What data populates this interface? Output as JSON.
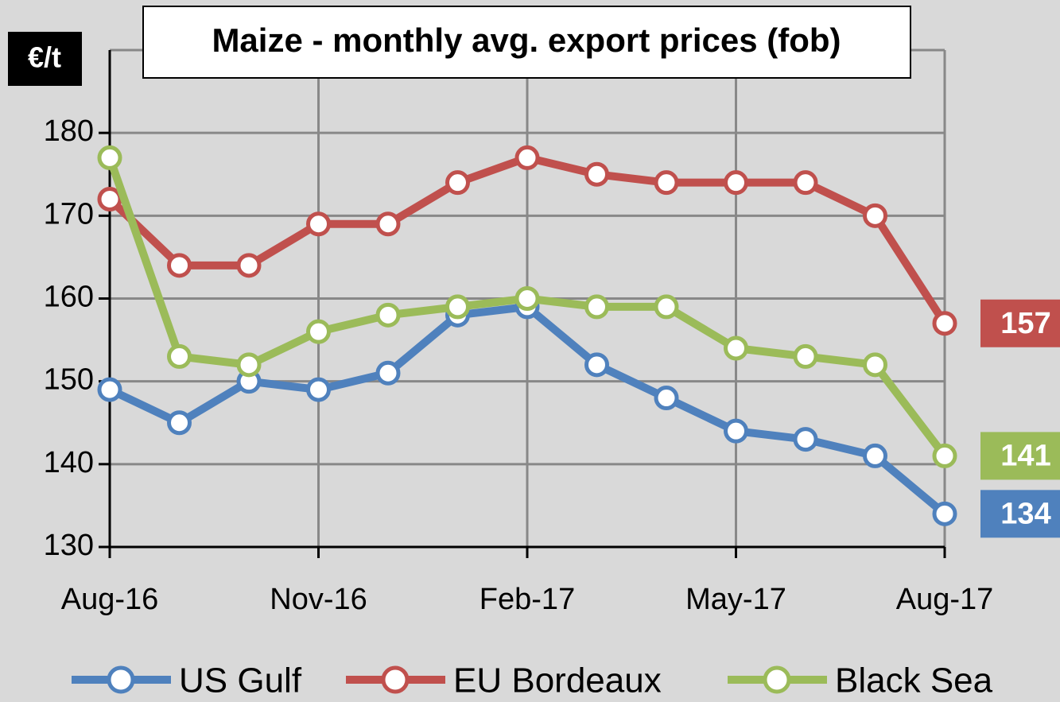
{
  "chart_data": {
    "type": "line",
    "title": "Maize - monthly avg. export prices (fob)",
    "y_label": "€/t",
    "categories": [
      "Aug-16",
      null,
      null,
      "Nov-16",
      null,
      null,
      "Feb-17",
      null,
      null,
      "May-17",
      null,
      null,
      "Aug-17"
    ],
    "series": [
      {
        "name": "US Gulf",
        "color": "#4f81bd",
        "values": [
          149,
          145,
          150,
          149,
          151,
          158,
          159,
          152,
          148,
          144,
          143,
          141,
          134
        ]
      },
      {
        "name": "EU Bordeaux",
        "color": "#c0504d",
        "values": [
          172,
          164,
          164,
          169,
          169,
          174,
          177,
          175,
          174,
          174,
          174,
          170,
          157
        ]
      },
      {
        "name": "Black Sea",
        "color": "#9bbb59",
        "values": [
          177,
          153,
          152,
          156,
          158,
          159,
          160,
          159,
          159,
          154,
          153,
          152,
          141
        ]
      }
    ],
    "ylim": [
      130,
      190
    ],
    "yticks": [
      130,
      140,
      150,
      160,
      170,
      180
    ],
    "grid": true,
    "legend": "bottom"
  }
}
